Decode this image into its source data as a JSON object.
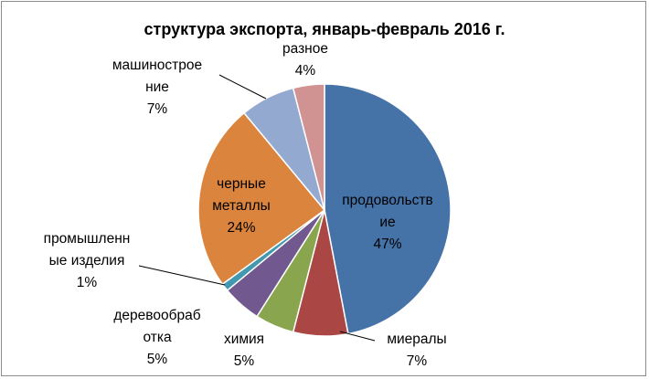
{
  "chart_data": {
    "type": "pie",
    "title": "структура экспорта, январь-февраль 2016 г.",
    "slices": [
      {
        "label_lines": [
          "продовольств",
          "ие"
        ],
        "pct_text": "47%",
        "value": 47,
        "color": "#4572a7"
      },
      {
        "label_lines": [
          "миералы"
        ],
        "pct_text": "7%",
        "value": 7,
        "color": "#aa4643"
      },
      {
        "label_lines": [
          "химия"
        ],
        "pct_text": "5%",
        "value": 5,
        "color": "#89a54e"
      },
      {
        "label_lines": [
          "деревообраб",
          "отка"
        ],
        "pct_text": "5%",
        "value": 5,
        "color": "#71588f"
      },
      {
        "label_lines": [
          "промышленн",
          "ые изделия"
        ],
        "pct_text": "1%",
        "value": 1,
        "color": "#4198af"
      },
      {
        "label_lines": [
          "черные",
          "металлы"
        ],
        "pct_text": "24%",
        "value": 24,
        "color": "#db843d"
      },
      {
        "label_lines": [
          "машиностроe",
          "ние"
        ],
        "pct_text": "7%",
        "value": 7,
        "color": "#93a9cf"
      },
      {
        "label_lines": [
          "разное"
        ],
        "pct_text": "4%",
        "value": 4,
        "color": "#d19392"
      }
    ]
  }
}
